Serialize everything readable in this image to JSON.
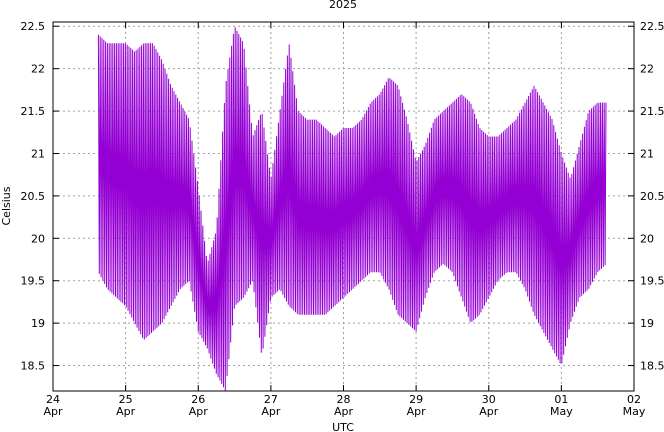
{
  "chart_data": {
    "type": "line",
    "title": "2025",
    "xlabel": "UTC",
    "ylabel": "Celsius",
    "ylim": [
      18.2,
      22.55
    ],
    "xlim": [
      "2025-04-24",
      "2025-05-02"
    ],
    "grid": true,
    "right_axis_mirrors_left": true,
    "line_color": "#9400D3",
    "yticks": [
      18.5,
      19,
      19.5,
      20,
      20.5,
      21,
      21.5,
      22,
      22.5
    ],
    "ytick_labels": [
      "18.5",
      "19",
      "19.5",
      "20",
      "20.5",
      "21",
      "21.5",
      "22",
      "22.5"
    ],
    "xticks": [
      {
        "date": "2025-04-24",
        "day": "24",
        "month": "Apr"
      },
      {
        "date": "2025-04-25",
        "day": "25",
        "month": "Apr"
      },
      {
        "date": "2025-04-26",
        "day": "26",
        "month": "Apr"
      },
      {
        "date": "2025-04-27",
        "day": "27",
        "month": "Apr"
      },
      {
        "date": "2025-04-28",
        "day": "28",
        "month": "Apr"
      },
      {
        "date": "2025-04-29",
        "day": "29",
        "month": "Apr"
      },
      {
        "date": "2025-04-30",
        "day": "30",
        "month": "Apr"
      },
      {
        "date": "2025-05-01",
        "day": "01",
        "month": "May"
      },
      {
        "date": "2025-05-02",
        "day": "02",
        "month": "May"
      }
    ],
    "series": [
      {
        "x": [
          "2025-04-24 15:00",
          "2025-04-24 18:00",
          "2025-04-24 21:00",
          "2025-04-25 00:00",
          "2025-04-25 03:00",
          "2025-04-25 06:00",
          "2025-04-25 09:00",
          "2025-04-25 12:00",
          "2025-04-25 15:00",
          "2025-04-25 18:00",
          "2025-04-25 21:00",
          "2025-04-26 00:00",
          "2025-04-26 03:00",
          "2025-04-26 06:00",
          "2025-04-26 09:00",
          "2025-04-26 12:00",
          "2025-04-26 15:00",
          "2025-04-26 18:00",
          "2025-04-26 21:00",
          "2025-04-27 00:00",
          "2025-04-27 03:00",
          "2025-04-27 06:00",
          "2025-04-27 09:00",
          "2025-04-27 12:00",
          "2025-04-27 15:00",
          "2025-04-27 18:00",
          "2025-04-27 21:00",
          "2025-04-28 00:00",
          "2025-04-28 03:00",
          "2025-04-28 06:00",
          "2025-04-28 09:00",
          "2025-04-28 12:00",
          "2025-04-28 15:00",
          "2025-04-28 18:00",
          "2025-04-28 21:00",
          "2025-04-29 00:00",
          "2025-04-29 03:00",
          "2025-04-29 06:00",
          "2025-04-29 09:00",
          "2025-04-29 12:00",
          "2025-04-29 15:00",
          "2025-04-29 18:00",
          "2025-04-29 21:00",
          "2025-04-30 00:00",
          "2025-04-30 03:00",
          "2025-04-30 06:00",
          "2025-04-30 09:00",
          "2025-04-30 12:00",
          "2025-04-30 15:00",
          "2025-04-30 18:00",
          "2025-04-30 21:00",
          "2025-05-01 00:00",
          "2025-05-01 03:00",
          "2025-05-01 06:00",
          "2025-05-01 09:00",
          "2025-05-01 12:00",
          "2025-05-01 15:00"
        ],
        "y_max": [
          22.4,
          22.3,
          22.3,
          22.3,
          22.2,
          22.3,
          22.3,
          22.1,
          21.8,
          21.6,
          21.4,
          20.6,
          19.7,
          20.1,
          21.8,
          22.5,
          22.3,
          21.2,
          21.5,
          20.7,
          21.5,
          22.3,
          21.5,
          21.4,
          21.4,
          21.3,
          21.2,
          21.3,
          21.3,
          21.4,
          21.6,
          21.7,
          21.9,
          21.8,
          21.4,
          20.9,
          21.1,
          21.4,
          21.5,
          21.6,
          21.7,
          21.6,
          21.3,
          21.2,
          21.2,
          21.3,
          21.4,
          21.6,
          21.8,
          21.6,
          21.4,
          21.0,
          20.7,
          21.1,
          21.5,
          21.6,
          21.6
        ],
        "y_min": [
          19.6,
          19.4,
          19.3,
          19.2,
          19.0,
          18.8,
          18.9,
          19.0,
          19.2,
          19.4,
          19.5,
          18.9,
          18.7,
          18.4,
          18.2,
          19.2,
          19.3,
          19.5,
          18.6,
          19.3,
          19.4,
          19.2,
          19.1,
          19.1,
          19.1,
          19.1,
          19.2,
          19.3,
          19.4,
          19.5,
          19.6,
          19.6,
          19.4,
          19.1,
          19.0,
          18.9,
          19.3,
          19.6,
          19.7,
          19.6,
          19.3,
          19.0,
          19.1,
          19.3,
          19.5,
          19.6,
          19.6,
          19.4,
          19.1,
          18.9,
          18.7,
          18.5,
          19.0,
          19.3,
          19.4,
          19.6,
          19.7
        ]
      }
    ]
  }
}
